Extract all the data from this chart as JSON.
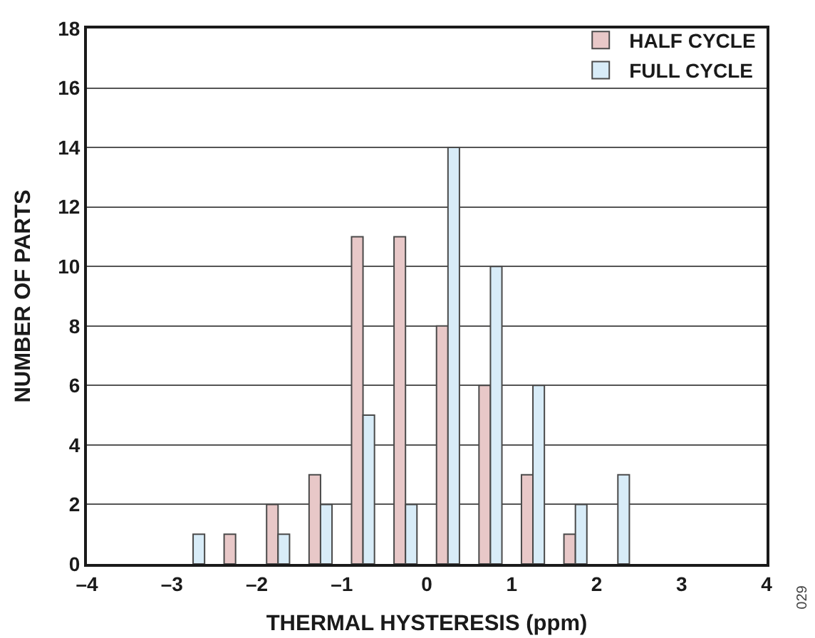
{
  "chart_data": {
    "type": "bar",
    "xlabel": "THERMAL HYSTERESIS (ppm)",
    "ylabel": "NUMBER OF PARTS",
    "x": [
      -2.75,
      -2.25,
      -1.75,
      -1.25,
      -0.75,
      -0.25,
      0.25,
      0.75,
      1.25,
      1.75,
      2.25
    ],
    "series": [
      {
        "name": "HALF CYCLE",
        "color": "#e8c8c8",
        "values": [
          null,
          1,
          2,
          3,
          11,
          11,
          8,
          6,
          3,
          1,
          null
        ]
      },
      {
        "name": "FULL CYCLE",
        "color": "#d8ecf8",
        "values": [
          1,
          null,
          1,
          2,
          5,
          2,
          14,
          10,
          6,
          2,
          3
        ]
      }
    ],
    "xlim": [
      -4,
      4
    ],
    "xticks": [
      {
        "value": -4,
        "label": "–4"
      },
      {
        "value": -3,
        "label": "–3"
      },
      {
        "value": -2,
        "label": "–2"
      },
      {
        "value": -1,
        "label": "–1"
      },
      0,
      1,
      2,
      3,
      4
    ],
    "ylim": [
      0,
      18
    ],
    "yticks": [
      0,
      2,
      4,
      6,
      8,
      10,
      12,
      14,
      16,
      18
    ],
    "grid": "y",
    "legend": "top right",
    "annotations": [
      "029"
    ]
  }
}
